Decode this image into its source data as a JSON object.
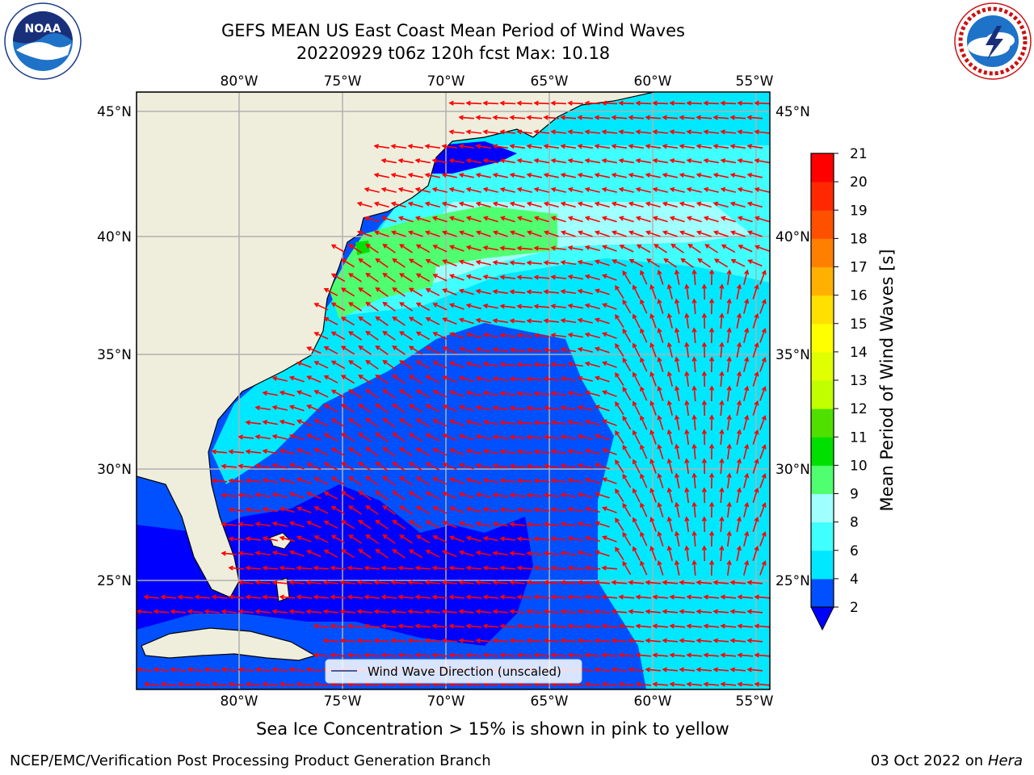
{
  "title_line1": "GEFS MEAN US East Coast Mean Period of Wind Waves",
  "title_line2": "20220929 t06z 120h fcst   Max: 10.18",
  "logos": {
    "left": "noaa-logo",
    "right": "nws-logo"
  },
  "longitude_labels": [
    "80°W",
    "75°W",
    "70°W",
    "65°W",
    "60°W",
    "55°W"
  ],
  "latitude_labels": [
    "45°N",
    "40°N",
    "35°N",
    "30°N",
    "25°N"
  ],
  "colorbar": {
    "label": "Mean Period of Wind Waves [s]",
    "ticks": [
      "2",
      "4",
      "6",
      "8",
      "9",
      "10",
      "11",
      "12",
      "13",
      "14",
      "15",
      "16",
      "17",
      "18",
      "19",
      "20",
      "21"
    ],
    "colors": [
      "#0050ff",
      "#00e8ff",
      "#40ffff",
      "#a0ffff",
      "#50ff70",
      "#00e000",
      "#50e000",
      "#c0ff00",
      "#e0ff00",
      "#ffff00",
      "#ffe000",
      "#ffb000",
      "#ff8000",
      "#ff5000",
      "#ff2800",
      "#ff0000"
    ],
    "extend_color": "#0000ff"
  },
  "legend_label": "Wind Wave Direction (unscaled)",
  "sea_ice_note": "Sea Ice Concentration > 15% is shown in pink to yellow",
  "credit": "NCEP/EMC/Verification Post Processing Product Generation Branch",
  "run_date": "03 Oct 2022 on",
  "run_host": "Hera",
  "colors": {
    "land": "#efeedc",
    "arrow": "#ff0000",
    "grid": "#b0b0b0"
  }
}
